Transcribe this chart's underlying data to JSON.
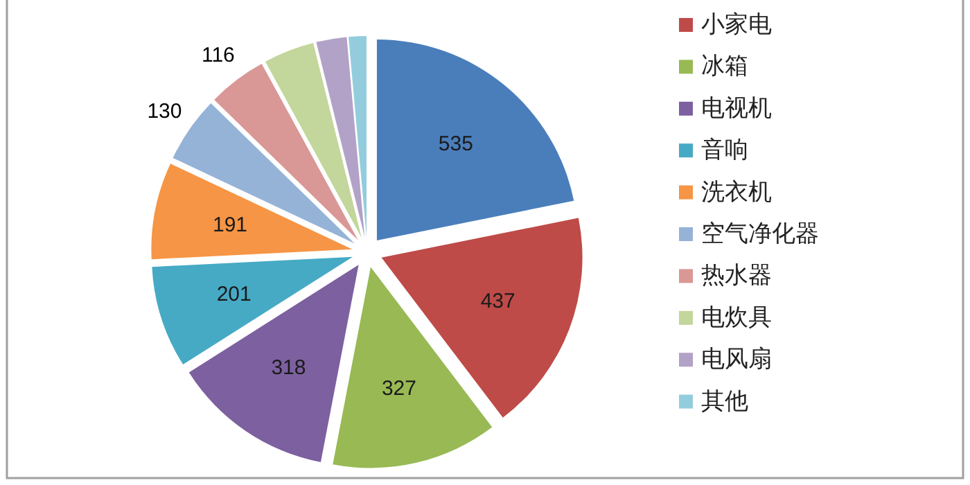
{
  "chart_data": {
    "type": "pie",
    "categories": [
      null,
      "小家电",
      "冰箱",
      "电视机",
      "音响",
      "洗衣机",
      "空气净化器",
      "热水器",
      "电炊具",
      "电风扇",
      "其他"
    ],
    "values": [
      535,
      437,
      327,
      318,
      201,
      191,
      130,
      116,
      100,
      60,
      35
    ],
    "value_labels": [
      "535",
      "437",
      "327",
      "318",
      "201",
      "191",
      "130",
      "116",
      null,
      null,
      null
    ],
    "colors": [
      "#4a7ebb",
      "#be4b48",
      "#98b954",
      "#7d60a0",
      "#46aac5",
      "#f69545",
      "#95b3d7",
      "#d99795",
      "#c3d69b",
      "#b2a2c7",
      "#93cddd"
    ],
    "legend": "right"
  }
}
